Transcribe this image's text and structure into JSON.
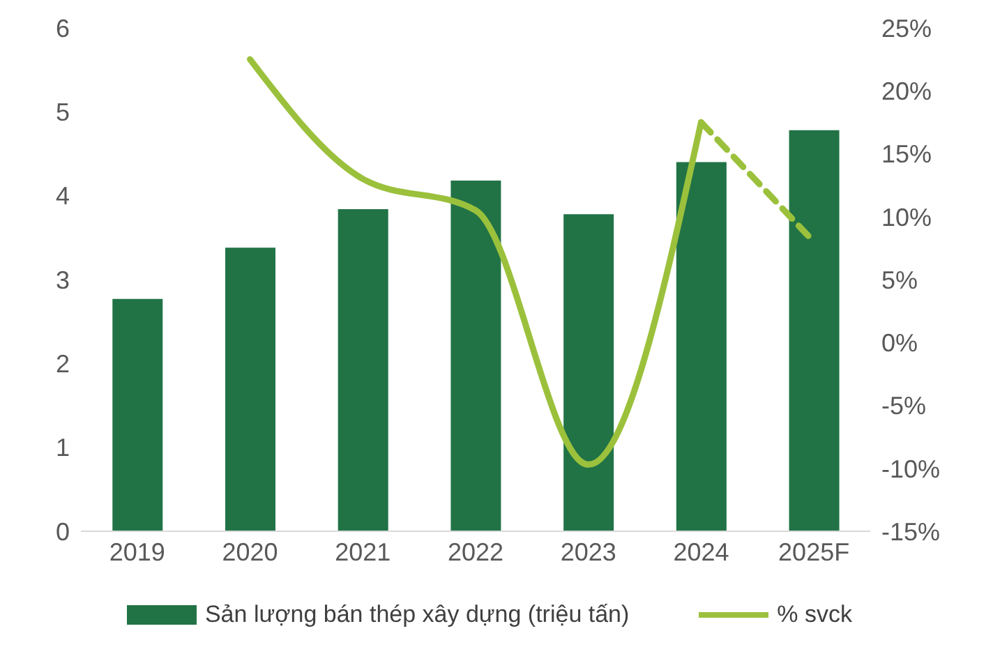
{
  "chart_data": {
    "type": "bar",
    "categories": [
      "2019",
      "2020",
      "2021",
      "2022",
      "2023",
      "2024",
      "2025F"
    ],
    "series": [
      {
        "name": "Sản lượng bán thép xây dựng (triệu tấn)",
        "color": "#217346",
        "values": [
          2.77,
          3.38,
          3.84,
          4.18,
          3.78,
          4.4,
          4.78
        ]
      },
      {
        "name": "% svck",
        "type": "line",
        "axis": "y2",
        "color": "#9bc13c",
        "line_style": "solid",
        "values": [
          null,
          22.5,
          13,
          10.5,
          -9.7,
          17.5,
          null
        ]
      },
      {
        "type": "line",
        "axis": "y2",
        "color": "#9bc13c",
        "line_style": "dashed",
        "values": [
          null,
          null,
          null,
          null,
          null,
          17.5,
          8
        ]
      }
    ],
    "ylim": [
      0,
      6
    ],
    "yticks": [
      0,
      1,
      2,
      3,
      4,
      5,
      6
    ],
    "y2lim": [
      -15,
      25
    ],
    "y2ticks": [
      {
        "value": -15,
        "label": "-15%"
      },
      {
        "value": -10,
        "label": "-10%"
      },
      {
        "value": -5,
        "label": "-5%"
      },
      {
        "value": 0,
        "label": "0%"
      },
      {
        "value": 5,
        "label": "5%"
      },
      {
        "value": 10,
        "label": "10%"
      },
      {
        "value": 15,
        "label": "15%"
      },
      {
        "value": 20,
        "label": "20%"
      },
      {
        "value": 25,
        "label": "25%"
      }
    ],
    "grid": false,
    "legend": "bottom",
    "marker": "none"
  }
}
